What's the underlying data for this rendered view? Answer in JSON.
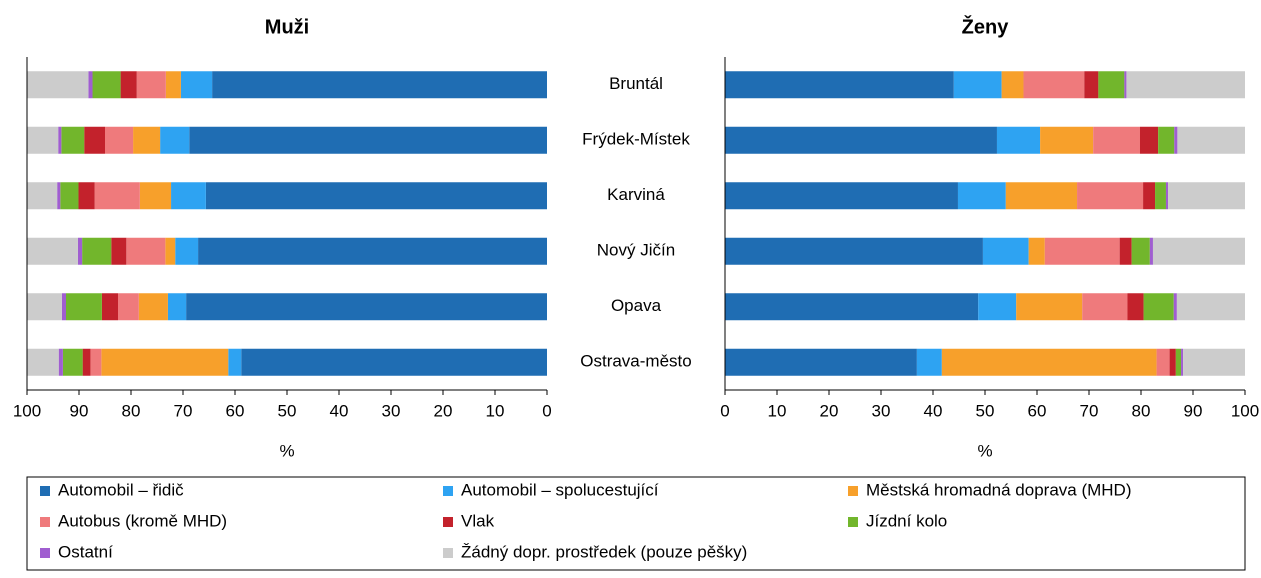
{
  "chart_data": [
    {
      "type": "bar",
      "title": "Muži",
      "xlabel": "%",
      "categories": [
        "Bruntál",
        "Frýdek-Místek",
        "Karviná",
        "Nový Jičín",
        "Opava",
        "Ostrava-město"
      ],
      "xlim": [
        100,
        0
      ],
      "xticks": [
        0,
        10,
        20,
        30,
        40,
        50,
        60,
        70,
        80,
        90,
        100
      ],
      "series": [
        {
          "name": "Automobil – řidič",
          "color": "#1f6db3",
          "values": [
            64.4,
            68.8,
            65.6,
            67.1,
            69.4,
            58.8
          ]
        },
        {
          "name": "Automobil – spolucestující",
          "color": "#2ea3f2",
          "values": [
            6.0,
            5.6,
            6.7,
            4.4,
            3.5,
            2.5
          ]
        },
        {
          "name": "Městská hromadná doprava (MHD)",
          "color": "#f7a02b",
          "values": [
            2.9,
            5.2,
            6.0,
            1.9,
            5.6,
            24.4
          ]
        },
        {
          "name": "Autobus (kromě MHD)",
          "color": "#ef7a7c",
          "values": [
            5.6,
            5.4,
            8.7,
            7.5,
            4.0,
            2.1
          ]
        },
        {
          "name": "Vlak",
          "color": "#c3222c",
          "values": [
            3.1,
            4.0,
            3.1,
            2.9,
            3.1,
            1.5
          ]
        },
        {
          "name": "Jízdní kolo",
          "color": "#72b62c",
          "values": [
            5.4,
            4.4,
            3.5,
            5.6,
            6.9,
            3.8
          ]
        },
        {
          "name": "Ostatní",
          "color": "#a05ed0",
          "values": [
            0.8,
            0.6,
            0.6,
            0.8,
            0.8,
            0.8
          ]
        },
        {
          "name": "Žádný dopr. prostředek (pouze pěšky)",
          "color": "#cccccc",
          "values": [
            11.8,
            6.0,
            5.8,
            9.8,
            6.7,
            6.1
          ]
        }
      ]
    },
    {
      "type": "bar",
      "title": "Ženy",
      "xlabel": "%",
      "xlim": [
        0,
        100
      ],
      "xticks": [
        0,
        10,
        20,
        30,
        40,
        50,
        60,
        70,
        80,
        90,
        100
      ],
      "series": [
        {
          "values": [
            44.0,
            52.3,
            44.8,
            49.6,
            48.7,
            36.9
          ]
        },
        {
          "values": [
            9.2,
            8.3,
            9.2,
            8.8,
            7.3,
            4.8
          ]
        },
        {
          "values": [
            4.2,
            10.2,
            13.7,
            3.1,
            12.7,
            41.3
          ]
        },
        {
          "values": [
            11.7,
            9.0,
            12.7,
            14.4,
            8.7,
            2.5
          ]
        },
        {
          "values": [
            2.7,
            3.5,
            2.3,
            2.3,
            3.1,
            1.2
          ]
        },
        {
          "values": [
            5.0,
            3.1,
            2.1,
            3.5,
            5.8,
            1.0
          ]
        },
        {
          "values": [
            0.4,
            0.6,
            0.4,
            0.6,
            0.6,
            0.4
          ]
        },
        {
          "values": [
            22.8,
            13.0,
            14.8,
            17.7,
            13.1,
            11.9
          ]
        }
      ]
    }
  ]
}
